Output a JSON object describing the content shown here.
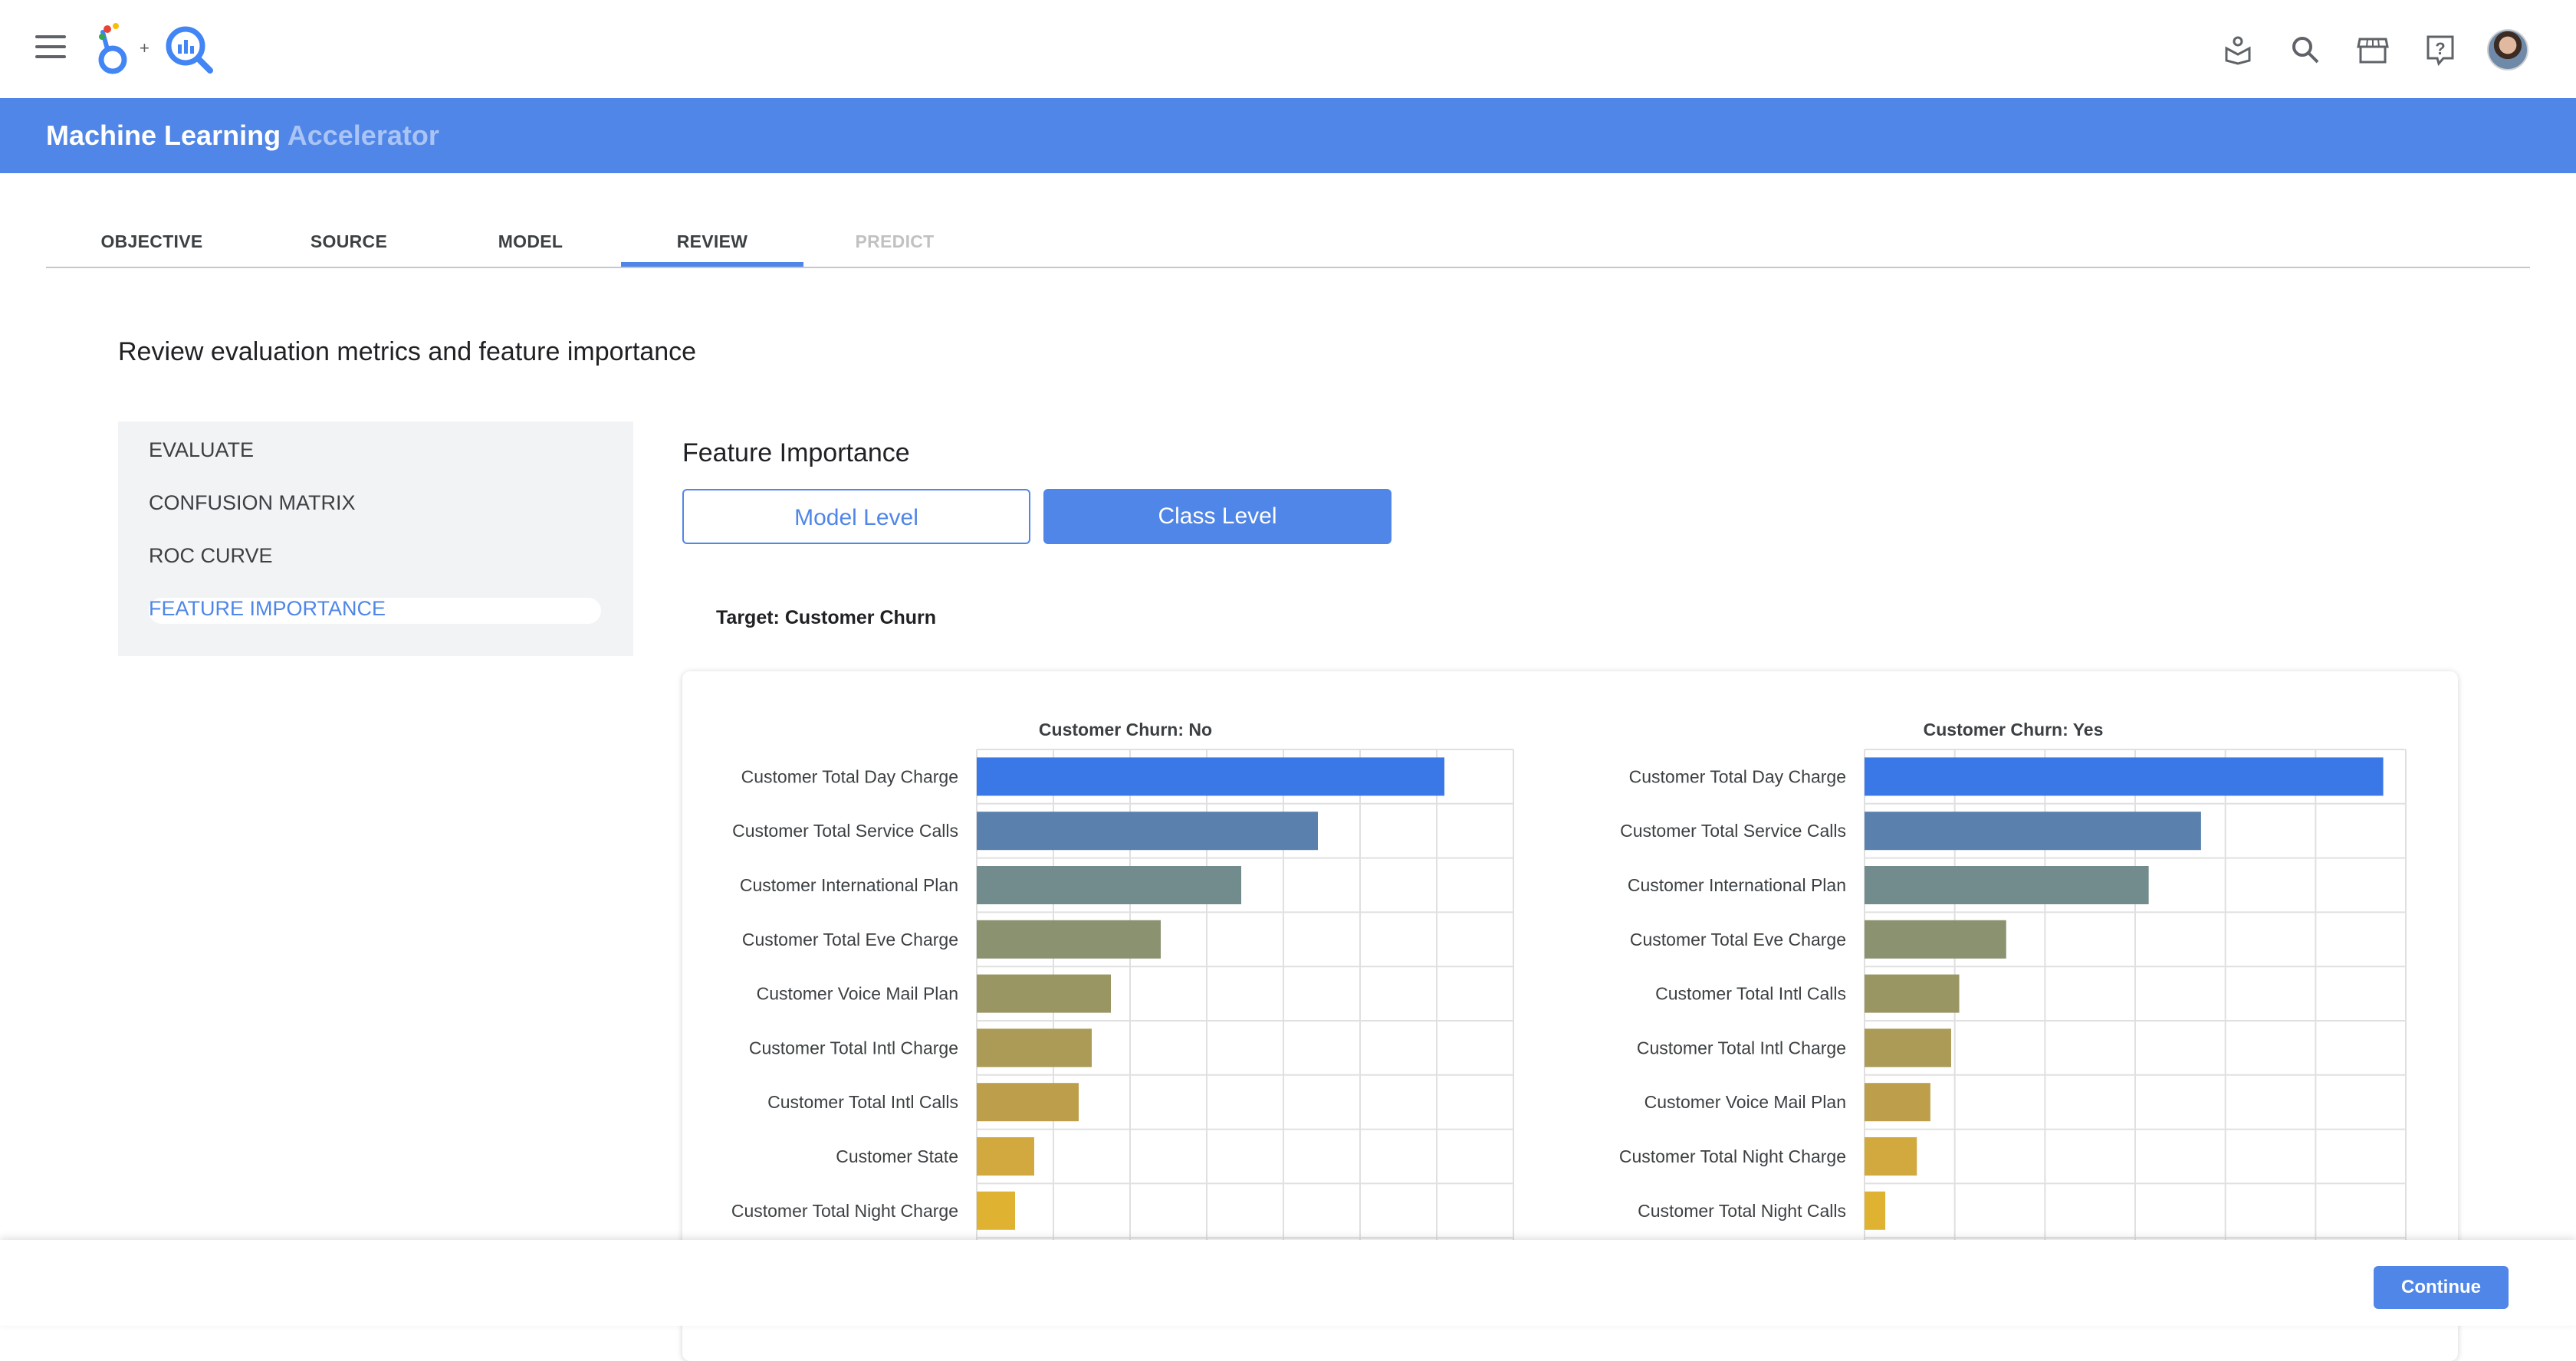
{
  "header": {
    "title_main": "Machine Learning",
    "title_sub": "Accelerator"
  },
  "tabs": [
    {
      "label": "OBJECTIVE"
    },
    {
      "label": "SOURCE"
    },
    {
      "label": "MODEL"
    },
    {
      "label": "REVIEW",
      "active": true
    },
    {
      "label": "PREDICT",
      "disabled": true
    }
  ],
  "page_heading": "Review evaluation metrics and feature importance",
  "leftnav": {
    "items": [
      {
        "label": "EVALUATE"
      },
      {
        "label": "CONFUSION MATRIX"
      },
      {
        "label": "ROC CURVE"
      },
      {
        "label": "FEATURE IMPORTANCE",
        "active": true
      }
    ]
  },
  "feature_importance": {
    "title": "Feature Importance",
    "model_level_label": "Model Level",
    "class_level_label": "Class Level",
    "target_label": "Target: Customer Churn"
  },
  "footer": {
    "continue_label": "Continue"
  },
  "colors": {
    "accent": "#4f86e8",
    "bar_palette": [
      "#3b78e7",
      "#5a81ad",
      "#728b8c",
      "#8a9270",
      "#9a9664",
      "#ab9b57",
      "#bd9f4b",
      "#d1a93e",
      "#e0b232"
    ]
  },
  "icons": [
    "menu-icon",
    "app-logo",
    "learning-icon",
    "search-icon",
    "store-icon",
    "help-icon",
    "avatar"
  ],
  "chart_data": [
    {
      "type": "bar",
      "orientation": "horizontal",
      "title": "Customer Churn: No",
      "categories": [
        "Customer Total Day Charge",
        "Customer Total Service Calls",
        "Customer International Plan",
        "Customer Total Eve Charge",
        "Customer Voice Mail Plan",
        "Customer Total Intl Charge",
        "Customer Total Intl Calls",
        "Customer State",
        "Customer Total Night Charge"
      ],
      "values": [
        0.61,
        0.445,
        0.345,
        0.24,
        0.175,
        0.15,
        0.133,
        0.075,
        0.05
      ],
      "xlim": [
        0,
        0.7
      ],
      "grid": true
    },
    {
      "type": "bar",
      "orientation": "horizontal",
      "title": "Customer Churn: Yes",
      "categories": [
        "Customer Total Day Charge",
        "Customer Total Service Calls",
        "Customer International Plan",
        "Customer Total Eve Charge",
        "Customer Total Intl Calls",
        "Customer Total Intl Charge",
        "Customer Voice Mail Plan",
        "Customer Total Night Charge",
        "Customer Total Night Calls"
      ],
      "values": [
        0.575,
        0.373,
        0.315,
        0.157,
        0.105,
        0.096,
        0.073,
        0.058,
        0.023
      ],
      "xlim": [
        0,
        0.6
      ],
      "grid": true
    }
  ]
}
